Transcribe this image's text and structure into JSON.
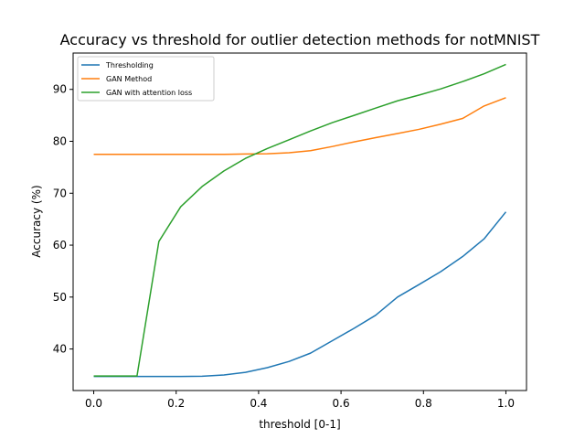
{
  "chart_data": {
    "type": "line",
    "title": "Accuracy vs threshold for outlier detection methods for notMNIST",
    "xlabel": "threshold [0-1]",
    "ylabel": "Accuracy (%)",
    "xlim": [
      -0.05,
      1.05
    ],
    "ylim": [
      32,
      97
    ],
    "xticks": [
      0.0,
      0.2,
      0.4,
      0.6,
      0.8,
      1.0
    ],
    "xtick_labels": [
      "0.0",
      "0.2",
      "0.4",
      "0.6",
      "0.8",
      "1.0"
    ],
    "yticks": [
      40,
      50,
      60,
      70,
      80,
      90
    ],
    "ytick_labels": [
      "40",
      "50",
      "60",
      "70",
      "80",
      "90"
    ],
    "grid": false,
    "legend_position": "top-left",
    "x": [
      0.0,
      0.053,
      0.105,
      0.158,
      0.211,
      0.263,
      0.316,
      0.368,
      0.421,
      0.474,
      0.526,
      0.579,
      0.632,
      0.684,
      0.737,
      0.789,
      0.842,
      0.895,
      0.947,
      1.0
    ],
    "series": [
      {
        "name": "Thresholding",
        "color": "#1f77b4",
        "values": [
          34.7,
          34.7,
          34.7,
          34.7,
          34.7,
          34.75,
          35.0,
          35.5,
          36.4,
          37.6,
          39.2,
          41.6,
          44.0,
          46.5,
          50.0,
          52.4,
          54.9,
          57.8,
          61.2,
          66.4
        ]
      },
      {
        "name": "GAN Method",
        "color": "#ff7f0e",
        "values": [
          77.5,
          77.5,
          77.5,
          77.5,
          77.5,
          77.5,
          77.5,
          77.55,
          77.6,
          77.8,
          78.2,
          79.0,
          79.9,
          80.7,
          81.5,
          82.3,
          83.3,
          84.4,
          86.8,
          88.4
        ]
      },
      {
        "name": "GAN with attention loss",
        "color": "#2ca02c",
        "values": [
          34.8,
          34.8,
          34.8,
          60.7,
          67.4,
          71.3,
          74.3,
          76.7,
          78.6,
          80.3,
          82.0,
          83.6,
          85.0,
          86.4,
          87.8,
          88.9,
          90.1,
          91.5,
          93.0,
          94.8
        ]
      }
    ]
  }
}
